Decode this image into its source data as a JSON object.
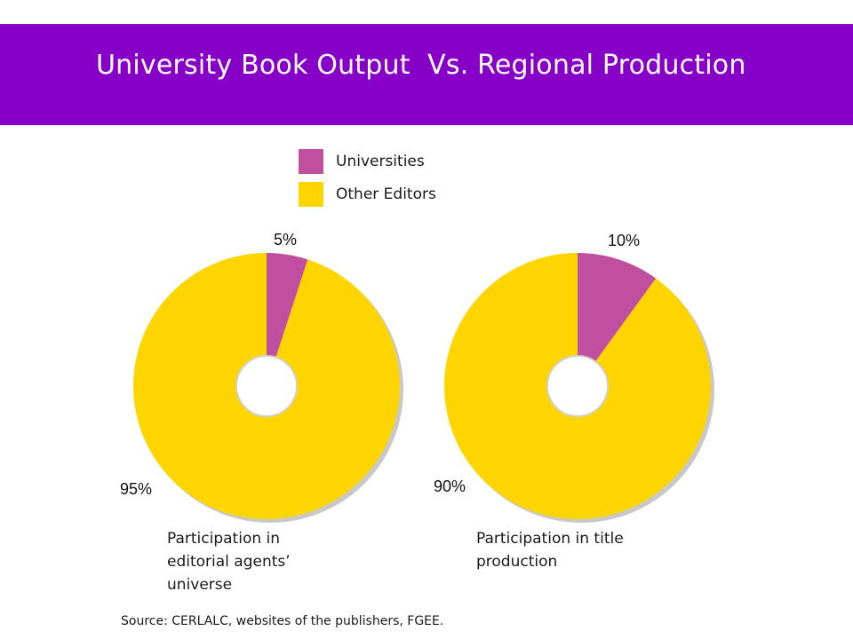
{
  "title": "University Book Output  Vs. Regional Production",
  "colors": {
    "header": "#8600C8",
    "universities": "#C0509F",
    "other_editors": "#FFD500"
  },
  "legend": [
    {
      "label": "Universities",
      "color": "#C0509F"
    },
    {
      "label": "Other Editors",
      "color": "#FFD500"
    }
  ],
  "chart_data": [
    {
      "type": "pie",
      "caption": "Participation in editorial agents’ universe",
      "slices": [
        {
          "name": "Universities",
          "value": 5,
          "label": "5%"
        },
        {
          "name": "Other Editors",
          "value": 95,
          "label": "95%"
        }
      ]
    },
    {
      "type": "pie",
      "caption": "Participation in title production",
      "slices": [
        {
          "name": "Universities",
          "value": 10,
          "label": "10%"
        },
        {
          "name": "Other Editors",
          "value": 90,
          "label": "90%"
        }
      ]
    }
  ],
  "source": "Source: CERLALC, websites of the publishers, FGEE."
}
